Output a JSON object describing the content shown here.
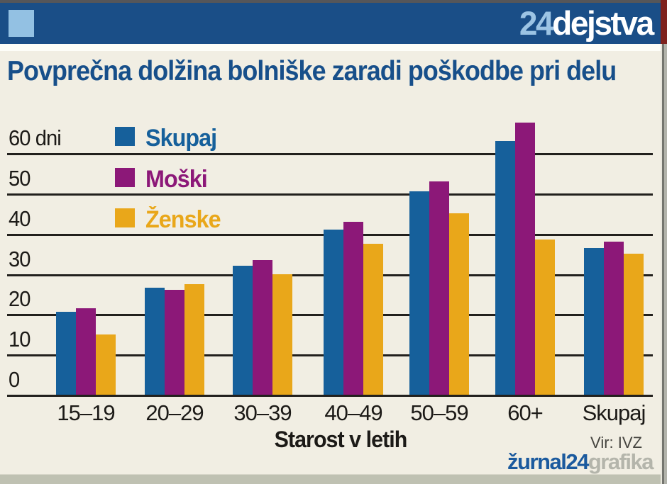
{
  "header": {
    "brand_light": "24",
    "brand_white": "dejstva"
  },
  "title": "Povprečna dolžina bolniške zaradi poškodbe pri delu",
  "chart_data": {
    "type": "bar",
    "title": "Povprečna dolžina bolniške zaradi poškodbe pri delu",
    "categories": [
      "15–19",
      "20–29",
      "30–39",
      "40–49",
      "50–59",
      "60+",
      "Skupaj"
    ],
    "series": [
      {
        "name": "Skupaj",
        "color": "#16609b",
        "values": [
          20.5,
          26.5,
          32,
          41,
          50.5,
          63,
          36.5
        ]
      },
      {
        "name": "Moški",
        "color": "#8c1878",
        "values": [
          21.5,
          26,
          33.5,
          43,
          53,
          67.5,
          38
        ]
      },
      {
        "name": "Ženske",
        "color": "#e9a71a",
        "values": [
          15,
          27.5,
          30,
          37.5,
          45,
          38.5,
          35
        ]
      }
    ],
    "xlabel": "Starost v letih",
    "ylabel": "dni",
    "y_ticks": [
      0,
      10,
      20,
      30,
      40,
      50,
      60
    ],
    "y_tick_labels": [
      "0",
      "10",
      "20",
      "30",
      "40",
      "50",
      "60 dni"
    ],
    "ylim": [
      0,
      70
    ],
    "grid": true,
    "legend_position": "top-left"
  },
  "footer": {
    "source": "Vir: IVZ",
    "logo_blue": "žurnal24",
    "logo_gray": "grafika"
  },
  "colors": {
    "background": "#f1eee3",
    "header_bg": "#1a4e87",
    "brand_light_blue": "#9cc4e4",
    "title_color": "#174f8a",
    "gridline": "#22201d",
    "series_skupaj": "#16609b",
    "series_moski": "#8c1878",
    "series_zenske": "#e9a71a"
  }
}
